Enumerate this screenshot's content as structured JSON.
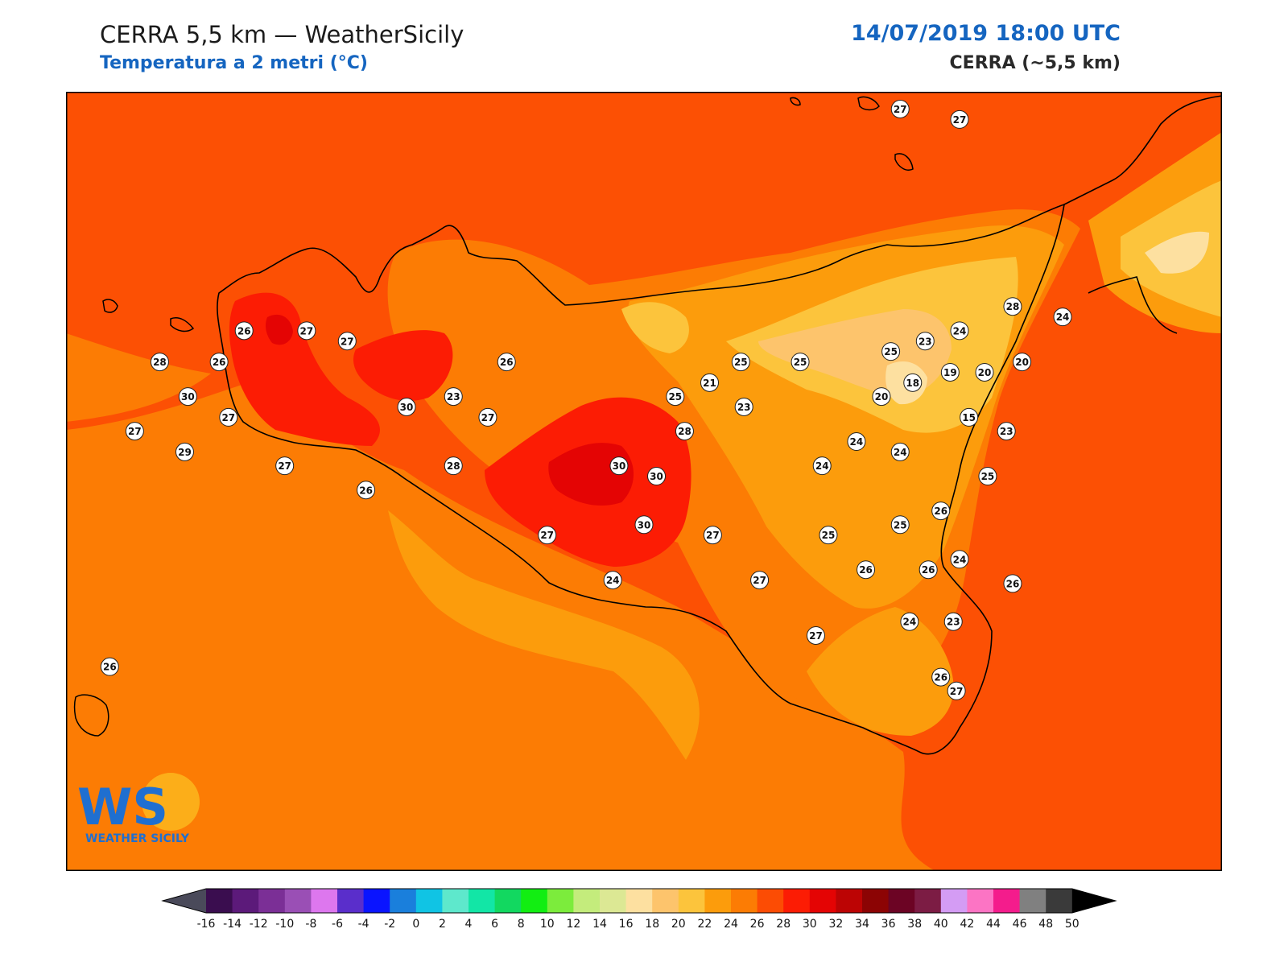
{
  "header": {
    "title": "CERRA 5,5 km — WeatherSicily",
    "subtitle": "Temperatura a 2 metri (°C)",
    "datetime": "14/07/2019 18:00 UTC",
    "model": "CERRA (~5,5 km)"
  },
  "logo": {
    "letters": "WS",
    "text": "WEATHER SICILY"
  },
  "colorbar": {
    "ticks": [
      "-16",
      "-14",
      "-12",
      "-10",
      "-8",
      "-6",
      "-4",
      "-2",
      "0",
      "2",
      "4",
      "6",
      "8",
      "10",
      "12",
      "14",
      "16",
      "18",
      "20",
      "22",
      "24",
      "26",
      "28",
      "30",
      "32",
      "34",
      "36",
      "38",
      "40",
      "42",
      "44",
      "46",
      "48",
      "50"
    ],
    "colors": [
      "#3a0d4f",
      "#5c1a7a",
      "#7b2f96",
      "#9a4fb5",
      "#dd77ee",
      "#5a2ecb",
      "#0a14ff",
      "#1a7fdc",
      "#10c4e4",
      "#5ee8cc",
      "#12e6a6",
      "#12d860",
      "#12ee12",
      "#7cec3c",
      "#c4ec7c",
      "#dce894",
      "#fde0a0",
      "#fdc46c",
      "#fcc43c",
      "#fc9c0c",
      "#fc7c04",
      "#fc4c04",
      "#fc1c04",
      "#e40404",
      "#bc0404",
      "#8c0404",
      "#6c0424",
      "#7c1c44",
      "#d49cf4",
      "#fc74c4",
      "#f41c8c",
      "#808080",
      "#3a3a3a"
    ]
  },
  "labels": [
    {
      "v": "27",
      "lon": 14.87,
      "lat": 38.8
    },
    {
      "v": "27",
      "lon": 15.06,
      "lat": 38.77
    },
    {
      "v": "28",
      "lon": 15.23,
      "lat": 38.23
    },
    {
      "v": "24",
      "lon": 15.39,
      "lat": 38.2
    },
    {
      "v": "26",
      "lon": 12.77,
      "lat": 38.16
    },
    {
      "v": "27",
      "lon": 12.97,
      "lat": 38.16
    },
    {
      "v": "27",
      "lon": 13.1,
      "lat": 38.13
    },
    {
      "v": "24",
      "lon": 15.06,
      "lat": 38.16
    },
    {
      "v": "23",
      "lon": 14.95,
      "lat": 38.13
    },
    {
      "v": "25",
      "lon": 14.84,
      "lat": 38.1
    },
    {
      "v": "28",
      "lon": 12.5,
      "lat": 38.07
    },
    {
      "v": "26",
      "lon": 12.69,
      "lat": 38.07
    },
    {
      "v": "26",
      "lon": 13.61,
      "lat": 38.07
    },
    {
      "v": "25",
      "lon": 14.36,
      "lat": 38.07
    },
    {
      "v": "25",
      "lon": 14.55,
      "lat": 38.07
    },
    {
      "v": "20",
      "lon": 15.26,
      "lat": 38.07
    },
    {
      "v": "19",
      "lon": 15.03,
      "lat": 38.04
    },
    {
      "v": "20",
      "lon": 15.14,
      "lat": 38.04
    },
    {
      "v": "21",
      "lon": 14.26,
      "lat": 38.01
    },
    {
      "v": "18",
      "lon": 14.91,
      "lat": 38.01
    },
    {
      "v": "30",
      "lon": 12.59,
      "lat": 37.97
    },
    {
      "v": "23",
      "lon": 13.44,
      "lat": 37.97
    },
    {
      "v": "25",
      "lon": 14.15,
      "lat": 37.97
    },
    {
      "v": "20",
      "lon": 14.81,
      "lat": 37.97
    },
    {
      "v": "30",
      "lon": 13.29,
      "lat": 37.94
    },
    {
      "v": "23",
      "lon": 14.37,
      "lat": 37.94
    },
    {
      "v": "27",
      "lon": 12.72,
      "lat": 37.91
    },
    {
      "v": "27",
      "lon": 13.55,
      "lat": 37.91
    },
    {
      "v": "15",
      "lon": 15.09,
      "lat": 37.91
    },
    {
      "v": "27",
      "lon": 12.42,
      "lat": 37.87
    },
    {
      "v": "28",
      "lon": 14.18,
      "lat": 37.87
    },
    {
      "v": "23",
      "lon": 15.21,
      "lat": 37.87
    },
    {
      "v": "24",
      "lon": 14.73,
      "lat": 37.84
    },
    {
      "v": "29",
      "lon": 12.58,
      "lat": 37.81
    },
    {
      "v": "24",
      "lon": 14.87,
      "lat": 37.81
    },
    {
      "v": "27",
      "lon": 12.9,
      "lat": 37.77
    },
    {
      "v": "28",
      "lon": 13.44,
      "lat": 37.77
    },
    {
      "v": "30",
      "lon": 13.97,
      "lat": 37.77
    },
    {
      "v": "24",
      "lon": 14.62,
      "lat": 37.77
    },
    {
      "v": "30",
      "lon": 14.09,
      "lat": 37.74
    },
    {
      "v": "25",
      "lon": 15.15,
      "lat": 37.74
    },
    {
      "v": "26",
      "lon": 13.16,
      "lat": 37.7
    },
    {
      "v": "26",
      "lon": 15.0,
      "lat": 37.64
    },
    {
      "v": "25",
      "lon": 14.87,
      "lat": 37.6
    },
    {
      "v": "30",
      "lon": 14.05,
      "lat": 37.6
    },
    {
      "v": "27",
      "lon": 13.74,
      "lat": 37.57
    },
    {
      "v": "27",
      "lon": 14.27,
      "lat": 37.57
    },
    {
      "v": "25",
      "lon": 14.64,
      "lat": 37.57
    },
    {
      "v": "24",
      "lon": 15.06,
      "lat": 37.5
    },
    {
      "v": "26",
      "lon": 14.76,
      "lat": 37.47
    },
    {
      "v": "26",
      "lon": 14.96,
      "lat": 37.47
    },
    {
      "v": "26",
      "lon": 15.23,
      "lat": 37.43
    },
    {
      "v": "24",
      "lon": 13.95,
      "lat": 37.44
    },
    {
      "v": "27",
      "lon": 14.42,
      "lat": 37.44
    },
    {
      "v": "24",
      "lon": 14.9,
      "lat": 37.32
    },
    {
      "v": "23",
      "lon": 15.04,
      "lat": 37.32
    },
    {
      "v": "27",
      "lon": 14.6,
      "lat": 37.28
    },
    {
      "v": "26",
      "lon": 12.34,
      "lat": 37.19
    },
    {
      "v": "26",
      "lon": 15.0,
      "lat": 37.16
    },
    {
      "v": "27",
      "lon": 15.05,
      "lat": 37.12
    }
  ]
}
